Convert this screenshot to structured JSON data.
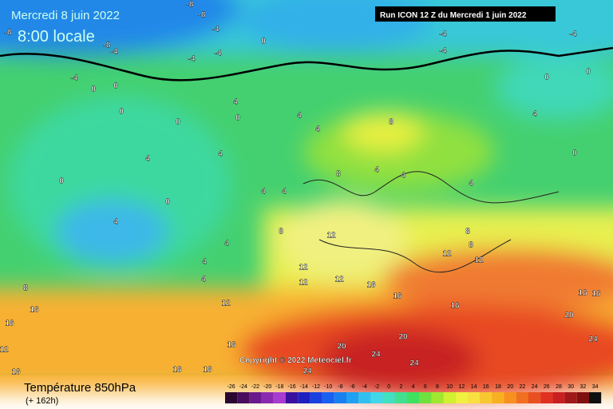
{
  "header": {
    "date": "Mercredi 8 juin 2022",
    "time": "8:00 locale",
    "run": "Run ICON 12 Z du Mercredi 1 juin 2022"
  },
  "copyright": "Copyright © 2022 Meteociel.fr",
  "footer": {
    "title": "Température 850hPa",
    "lead": "(+ 162h)"
  },
  "scale": {
    "values": [
      -26,
      -24,
      -22,
      -20,
      -18,
      -16,
      -14,
      -12,
      -10,
      -8,
      -6,
      -4,
      -2,
      0,
      2,
      4,
      6,
      8,
      10,
      12,
      14,
      16,
      18,
      20,
      22,
      24,
      26,
      28,
      30,
      32,
      34
    ],
    "colors": [
      "#2a0630",
      "#4a0c5c",
      "#6a1a8a",
      "#8a2ab0",
      "#a83cd0",
      "#3a10a0",
      "#2020c0",
      "#1a40e0",
      "#1a60f0",
      "#1a80f0",
      "#20a0f0",
      "#30c0f0",
      "#40d8e8",
      "#40e0c0",
      "#40e090",
      "#40e060",
      "#70e040",
      "#a0e830",
      "#d0f030",
      "#f0f040",
      "#f8e040",
      "#f8c830",
      "#f8b020",
      "#f89020",
      "#f07020",
      "#e85020",
      "#e03020",
      "#c82020",
      "#a01818",
      "#801010",
      "#101010"
    ]
  },
  "contour_labels": [
    -8,
    -8,
    -8,
    -4,
    -8,
    -4,
    -4,
    -4,
    0,
    -4,
    -4,
    -4,
    -4,
    0,
    0,
    0,
    4,
    0,
    0,
    4,
    4,
    8,
    0,
    0,
    4,
    0,
    4,
    4,
    0,
    0,
    4,
    4,
    8,
    4,
    4,
    4,
    8,
    12,
    4,
    4,
    4,
    4,
    8,
    12,
    12,
    12,
    16,
    16,
    12,
    16,
    16,
    16,
    16,
    20,
    20,
    20,
    24,
    24,
    24,
    16,
    16,
    16,
    16,
    12,
    16,
    24,
    8,
    12,
    12,
    8
  ]
}
